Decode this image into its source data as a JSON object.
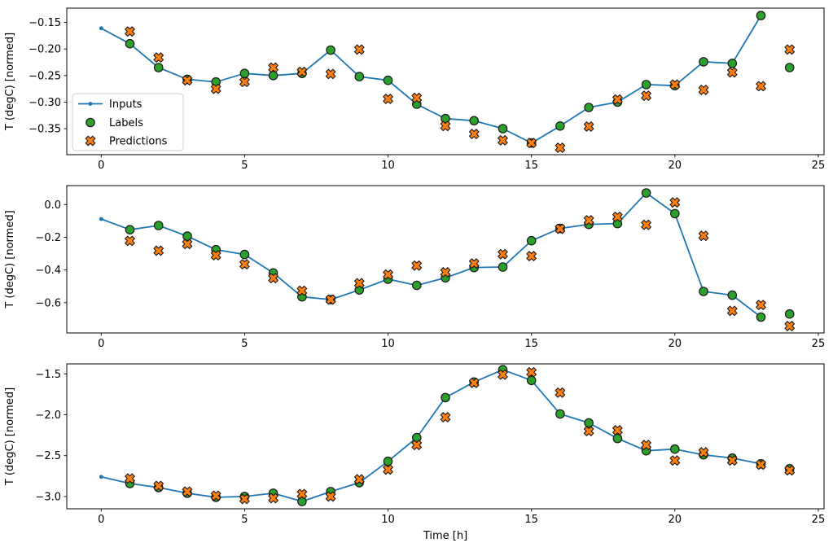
{
  "xlabel": "Time [h]",
  "colors": {
    "inputs": "#1f77b4",
    "labels": "#2ca02c",
    "predictions": "#ff7f0e",
    "marker_edge": "#1a1a1a",
    "axis": "#000000",
    "legend_border": "#cccccc",
    "background": "#ffffff"
  },
  "legend": {
    "items": [
      {
        "label": "Inputs"
      },
      {
        "label": "Labels"
      },
      {
        "label": "Predictions"
      }
    ]
  },
  "chart_data": [
    {
      "type": "line",
      "title": "",
      "ylabel": "T (degC) [normed]",
      "xlim": [
        -1.2,
        25.2
      ],
      "ylim": [
        -0.399,
        -0.123
      ],
      "xticks": [
        0,
        5,
        10,
        15,
        20,
        25
      ],
      "xtick_labels": [
        "0",
        "5",
        "10",
        "15",
        "20",
        "25"
      ],
      "yticks": [
        -0.15,
        -0.2,
        -0.25,
        -0.3,
        -0.35
      ],
      "ytick_labels": [
        "−0.15",
        "−0.20",
        "−0.25",
        "−0.30",
        "−0.35"
      ],
      "grid": false,
      "legend_position": "upper-left-inside",
      "series": [
        {
          "name": "Inputs",
          "type": "line-with-dots",
          "x": [
            0,
            1,
            2,
            3,
            4,
            5,
            6,
            7,
            8,
            9,
            10,
            11,
            12,
            13,
            14,
            15,
            16,
            17,
            18,
            19,
            20,
            21,
            22,
            23
          ],
          "y": [
            -0.161,
            -0.19,
            -0.235,
            -0.257,
            -0.262,
            -0.246,
            -0.25,
            -0.246,
            -0.202,
            -0.252,
            -0.259,
            -0.304,
            -0.331,
            -0.335,
            -0.35,
            -0.377,
            -0.345,
            -0.31,
            -0.3,
            -0.267,
            -0.269,
            -0.224,
            -0.227,
            -0.137
          ]
        },
        {
          "name": "Labels",
          "type": "scatter-circle",
          "x": [
            1,
            2,
            3,
            4,
            5,
            6,
            7,
            8,
            9,
            10,
            11,
            12,
            13,
            14,
            15,
            16,
            17,
            18,
            19,
            20,
            21,
            22,
            23,
            24
          ],
          "y": [
            -0.19,
            -0.235,
            -0.257,
            -0.262,
            -0.246,
            -0.25,
            -0.246,
            -0.202,
            -0.252,
            -0.259,
            -0.304,
            -0.331,
            -0.335,
            -0.35,
            -0.377,
            -0.345,
            -0.31,
            -0.3,
            -0.267,
            -0.269,
            -0.224,
            -0.227,
            -0.137,
            -0.235
          ]
        },
        {
          "name": "Predictions",
          "type": "scatter-x",
          "x": [
            1,
            2,
            3,
            4,
            5,
            6,
            7,
            8,
            9,
            10,
            11,
            12,
            13,
            14,
            15,
            16,
            17,
            18,
            19,
            20,
            21,
            22,
            23,
            24
          ],
          "y": [
            -0.167,
            -0.216,
            -0.259,
            -0.275,
            -0.262,
            -0.235,
            -0.243,
            -0.247,
            -0.201,
            -0.294,
            -0.292,
            -0.345,
            -0.36,
            -0.372,
            -0.377,
            -0.386,
            -0.346,
            -0.295,
            -0.288,
            -0.267,
            -0.277,
            -0.244,
            -0.27,
            -0.201
          ]
        }
      ]
    },
    {
      "type": "line",
      "title": "",
      "ylabel": "T (degC) [normed]",
      "xlim": [
        -1.2,
        25.2
      ],
      "ylim": [
        -0.785,
        0.116
      ],
      "xticks": [
        0,
        5,
        10,
        15,
        20,
        25
      ],
      "xtick_labels": [
        "0",
        "5",
        "10",
        "15",
        "20",
        "25"
      ],
      "yticks": [
        0.0,
        -0.2,
        -0.4,
        -0.6
      ],
      "ytick_labels": [
        "0.0",
        "−0.2",
        "−0.4",
        "−0.6"
      ],
      "grid": false,
      "legend_position": "none",
      "series": [
        {
          "name": "Inputs",
          "type": "line-with-dots",
          "x": [
            0,
            1,
            2,
            3,
            4,
            5,
            6,
            7,
            8,
            9,
            10,
            11,
            12,
            13,
            14,
            15,
            16,
            17,
            18,
            19,
            20,
            21,
            22,
            23
          ],
          "y": [
            -0.088,
            -0.154,
            -0.128,
            -0.193,
            -0.276,
            -0.305,
            -0.418,
            -0.564,
            -0.581,
            -0.522,
            -0.456,
            -0.494,
            -0.448,
            -0.385,
            -0.382,
            -0.221,
            -0.146,
            -0.121,
            -0.116,
            0.071,
            -0.055,
            -0.531,
            -0.554,
            -0.688
          ]
        },
        {
          "name": "Labels",
          "type": "scatter-circle",
          "x": [
            1,
            2,
            3,
            4,
            5,
            6,
            7,
            8,
            9,
            10,
            11,
            12,
            13,
            14,
            15,
            16,
            17,
            18,
            19,
            20,
            21,
            22,
            23,
            24
          ],
          "y": [
            -0.154,
            -0.128,
            -0.193,
            -0.276,
            -0.305,
            -0.418,
            -0.564,
            -0.581,
            -0.522,
            -0.456,
            -0.494,
            -0.448,
            -0.385,
            -0.382,
            -0.221,
            -0.146,
            -0.121,
            -0.116,
            0.071,
            -0.055,
            -0.531,
            -0.554,
            -0.688,
            -0.669
          ]
        },
        {
          "name": "Predictions",
          "type": "scatter-x",
          "x": [
            1,
            2,
            3,
            4,
            5,
            6,
            7,
            8,
            9,
            10,
            11,
            12,
            13,
            14,
            15,
            16,
            17,
            18,
            19,
            20,
            21,
            22,
            23,
            24
          ],
          "y": [
            -0.222,
            -0.282,
            -0.241,
            -0.31,
            -0.365,
            -0.45,
            -0.527,
            -0.581,
            -0.481,
            -0.428,
            -0.373,
            -0.414,
            -0.36,
            -0.303,
            -0.315,
            -0.148,
            -0.096,
            -0.075,
            -0.124,
            0.013,
            -0.191,
            -0.65,
            -0.614,
            -0.743
          ]
        }
      ]
    },
    {
      "type": "line",
      "title": "",
      "ylabel": "T (degC) [normed]",
      "xlim": [
        -1.2,
        25.2
      ],
      "ylim": [
        -3.15,
        -1.378
      ],
      "xticks": [
        0,
        5,
        10,
        15,
        20,
        25
      ],
      "xtick_labels": [
        "0",
        "5",
        "10",
        "15",
        "20",
        "25"
      ],
      "yticks": [
        -1.5,
        -2.0,
        -2.5,
        -3.0
      ],
      "ytick_labels": [
        "−1.5",
        "−2.0",
        "−2.5",
        "−3.0"
      ],
      "grid": false,
      "legend_position": "none",
      "series": [
        {
          "name": "Inputs",
          "type": "line-with-dots",
          "x": [
            0,
            1,
            2,
            3,
            4,
            5,
            6,
            7,
            8,
            9,
            10,
            11,
            12,
            13,
            14,
            15,
            16,
            17,
            18,
            19,
            20,
            21,
            22,
            23
          ],
          "y": [
            -2.76,
            -2.84,
            -2.89,
            -2.96,
            -3.01,
            -3.0,
            -2.96,
            -3.06,
            -2.94,
            -2.83,
            -2.57,
            -2.28,
            -1.79,
            -1.6,
            -1.45,
            -1.58,
            -1.99,
            -2.1,
            -2.29,
            -2.44,
            -2.42,
            -2.49,
            -2.53,
            -2.6
          ]
        },
        {
          "name": "Labels",
          "type": "scatter-circle",
          "x": [
            1,
            2,
            3,
            4,
            5,
            6,
            7,
            8,
            9,
            10,
            11,
            12,
            13,
            14,
            15,
            16,
            17,
            18,
            19,
            20,
            21,
            22,
            23,
            24
          ],
          "y": [
            -2.84,
            -2.89,
            -2.96,
            -3.01,
            -3.0,
            -2.96,
            -3.06,
            -2.94,
            -2.83,
            -2.57,
            -2.28,
            -1.79,
            -1.6,
            -1.45,
            -1.58,
            -1.99,
            -2.1,
            -2.29,
            -2.44,
            -2.42,
            -2.49,
            -2.53,
            -2.6,
            -2.66
          ]
        },
        {
          "name": "Predictions",
          "type": "scatter-x",
          "x": [
            1,
            2,
            3,
            4,
            5,
            6,
            7,
            8,
            9,
            10,
            11,
            12,
            13,
            14,
            15,
            16,
            17,
            18,
            19,
            20,
            21,
            22,
            23,
            24
          ],
          "y": [
            -2.78,
            -2.87,
            -2.94,
            -2.99,
            -3.03,
            -3.02,
            -2.97,
            -3.0,
            -2.79,
            -2.67,
            -2.37,
            -2.03,
            -1.61,
            -1.51,
            -1.48,
            -1.73,
            -2.2,
            -2.19,
            -2.37,
            -2.56,
            -2.46,
            -2.56,
            -2.61,
            -2.68
          ]
        }
      ]
    }
  ]
}
